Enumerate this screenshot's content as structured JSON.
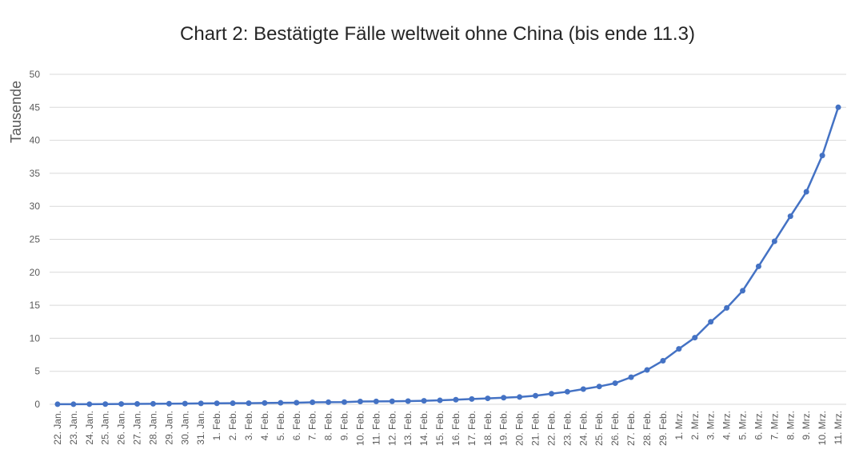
{
  "chart_data": {
    "type": "line",
    "title": "Chart 2: Bestätigte Fälle weltweit ohne China (bis ende 11.3)",
    "y_label": "Tausende",
    "categories": [
      "22. Jan.",
      "23. Jan.",
      "24. Jan.",
      "25. Jan.",
      "26. Jan.",
      "27. Jan.",
      "28. Jan.",
      "29. Jan.",
      "30. Jan.",
      "31. Jan.",
      "1. Feb.",
      "2. Feb.",
      "3. Feb.",
      "4. Feb.",
      "5. Feb.",
      "6. Feb.",
      "7. Feb.",
      "8. Feb.",
      "9. Feb.",
      "10. Feb.",
      "11. Feb.",
      "12. Feb.",
      "13. Feb.",
      "14. Feb.",
      "15. Feb.",
      "16. Feb.",
      "17. Feb.",
      "18. Feb.",
      "19. Feb.",
      "20. Feb.",
      "21. Feb.",
      "22. Feb.",
      "23. Feb.",
      "24. Feb.",
      "25. Feb.",
      "26. Feb.",
      "27. Feb.",
      "28. Feb.",
      "29. Feb.",
      "1. Mrz.",
      "2. Mrz.",
      "3. Mrz.",
      "4. Mrz.",
      "5. Mrz.",
      "6. Mrz.",
      "7. Mrz.",
      "8. Mrz.",
      "9. Mrz.",
      "10. Mrz.",
      "11. Mrz."
    ],
    "values": [
      0.01,
      0.01,
      0.02,
      0.03,
      0.05,
      0.06,
      0.08,
      0.09,
      0.11,
      0.14,
      0.15,
      0.16,
      0.17,
      0.2,
      0.22,
      0.24,
      0.3,
      0.32,
      0.33,
      0.42,
      0.44,
      0.45,
      0.48,
      0.53,
      0.6,
      0.7,
      0.8,
      0.9,
      1.0,
      1.1,
      1.3,
      1.6,
      1.9,
      2.3,
      2.7,
      3.2,
      4.1,
      5.2,
      6.6,
      8.4,
      10.1,
      12.5,
      14.6,
      17.2,
      20.9,
      24.7,
      28.5,
      32.2,
      37.7,
      45
    ],
    "color": "#4472c4",
    "ylim": [
      0,
      50
    ],
    "yticks": [
      0,
      5,
      10,
      15,
      20,
      25,
      30,
      35,
      40,
      45,
      50
    ],
    "grid": true
  }
}
